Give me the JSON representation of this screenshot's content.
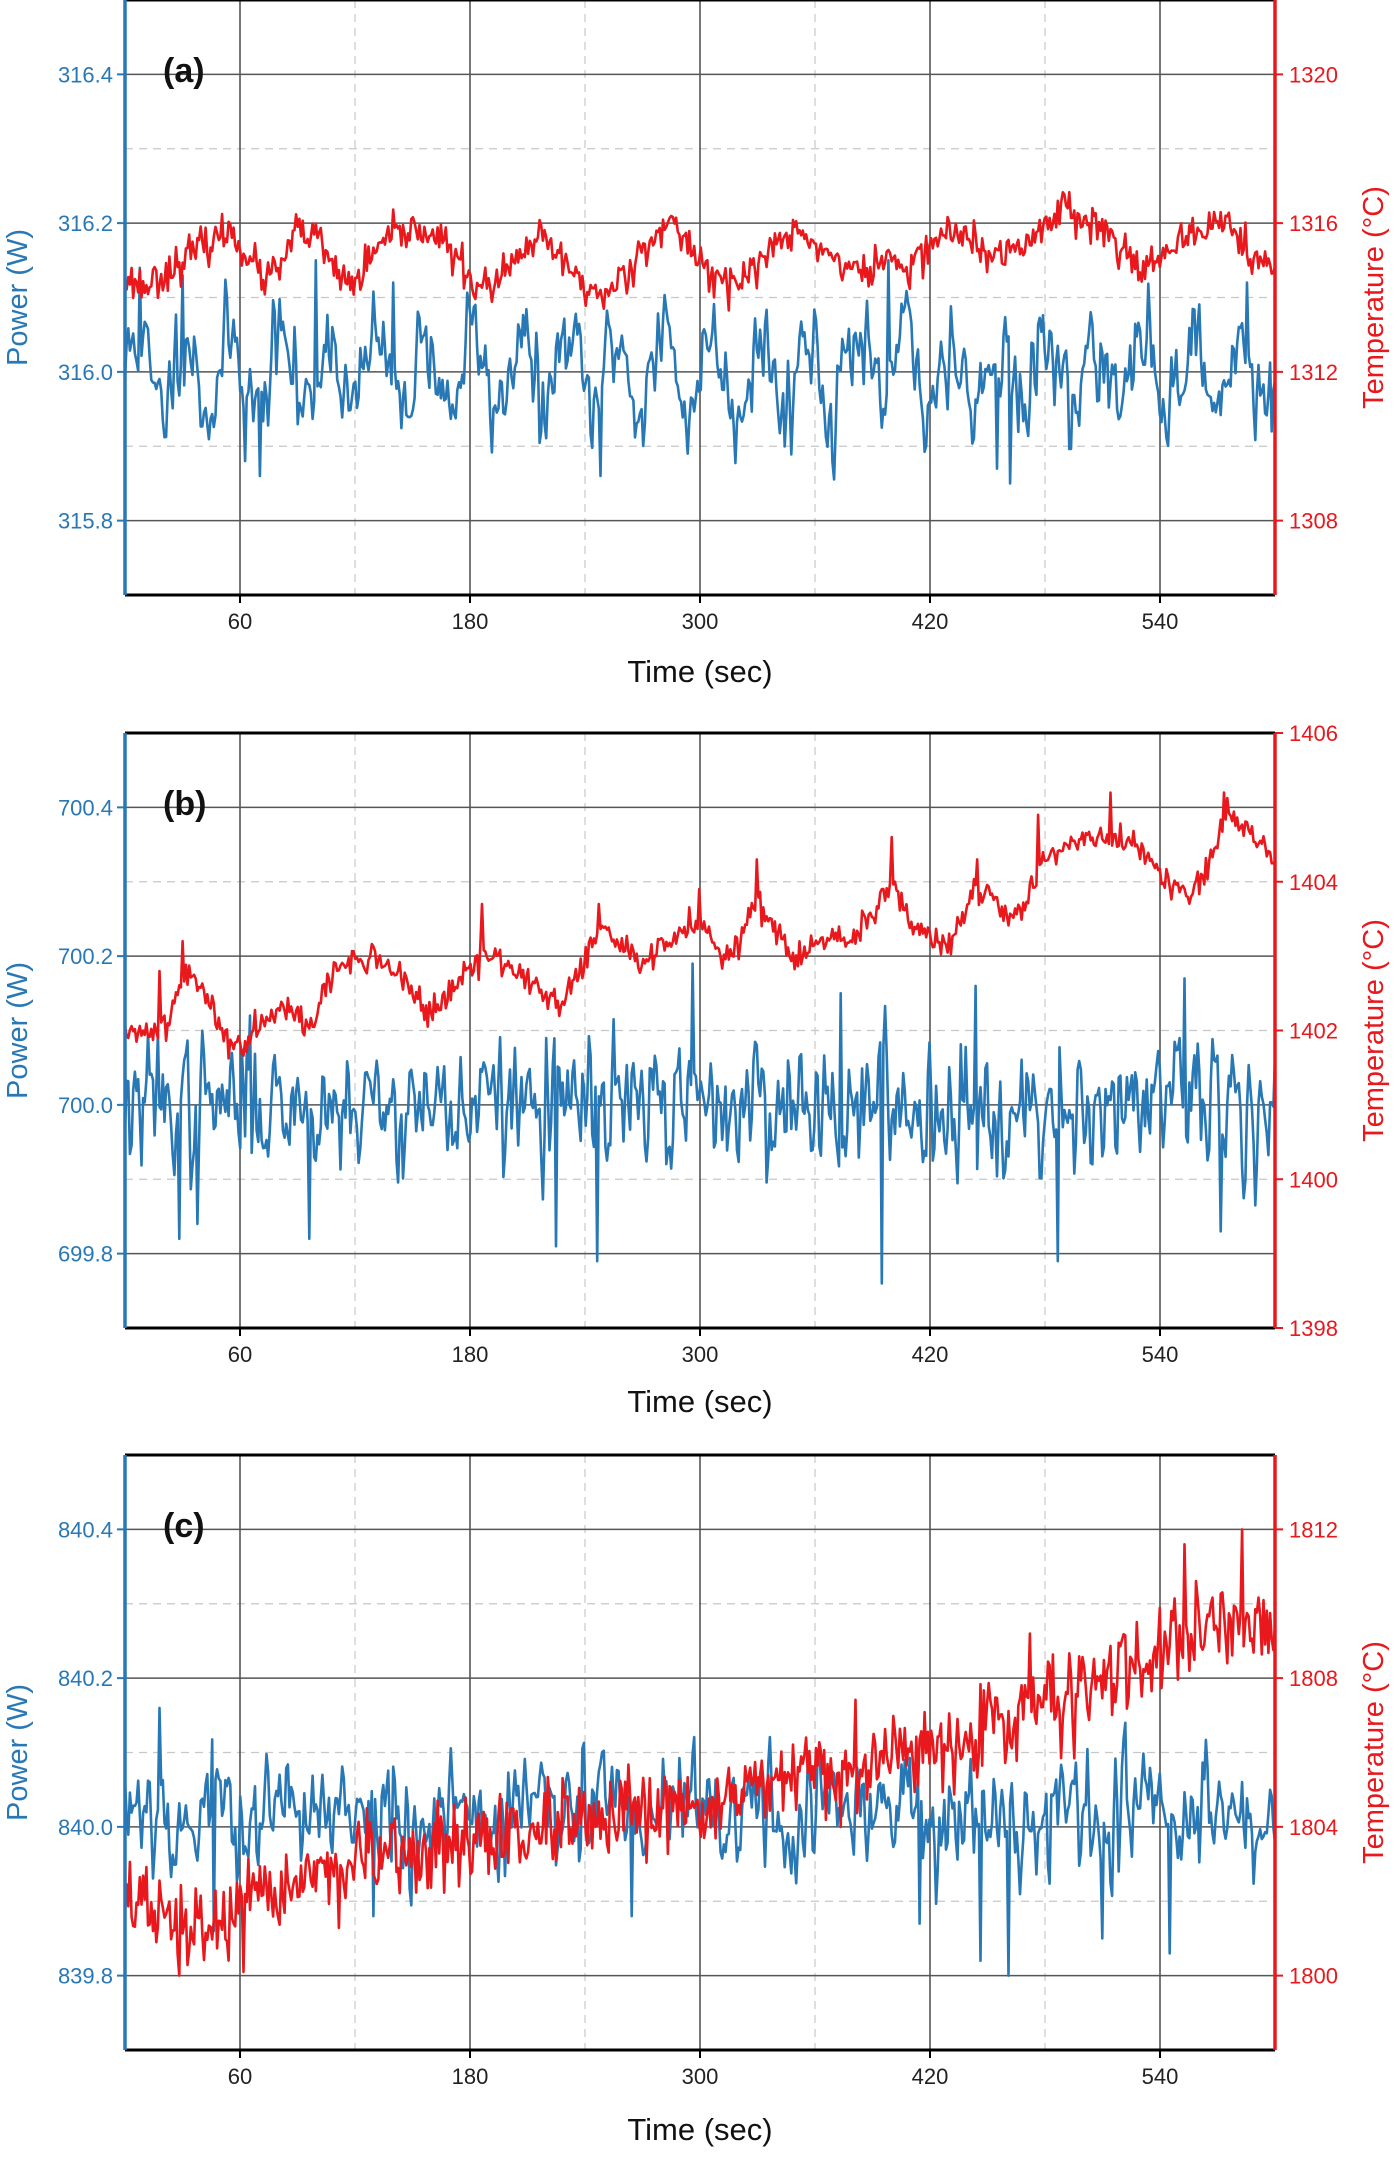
{
  "figure": {
    "colors": {
      "power": "#2878b5",
      "temperature": "#e8181c",
      "major_grid": "#555555",
      "minor_grid": "#c8c8c8",
      "frame": "#000000"
    }
  },
  "chart_data": [
    {
      "type": "line",
      "panel_label": "(a)",
      "xlabel": "Time (sec)",
      "ylabel_left": "Power (W)",
      "ylabel_right": "Temperature (°C)",
      "x_ticks": [
        60,
        180,
        300,
        420,
        540
      ],
      "xlim": [
        0,
        600
      ],
      "left_axis": {
        "ylim": [
          315.7,
          316.5
        ],
        "ticks": [
          "315.8",
          "316.0",
          "316.2",
          "316.4"
        ]
      },
      "right_axis": {
        "ylim": [
          1306,
          1322
        ],
        "ticks": [
          "1308",
          "1312",
          "1316",
          "1320"
        ]
      },
      "grid": true,
      "series": [
        {
          "name": "Power",
          "axis": "left",
          "pattern": "noise",
          "mean": 316.0,
          "amplitude": 0.05,
          "noise_std": 0.045,
          "period": 25,
          "n": 700,
          "seed": 11,
          "spikes": [
            [
              8,
              316.14
            ],
            [
              30,
              316.13
            ],
            [
              63,
              315.88
            ],
            [
              70,
              315.86
            ],
            [
              100,
              316.15
            ],
            [
              140,
              316.12
            ],
            [
              248,
              315.86
            ],
            [
              398,
              316.15
            ],
            [
              455,
              315.87
            ],
            [
              462,
              315.85
            ],
            [
              585,
              316.12
            ],
            [
              598,
              315.92
            ]
          ]
        },
        {
          "name": "Temperature",
          "axis": "right",
          "pattern": "keypoints",
          "noise_std": 0.25,
          "n": 700,
          "seed": 23,
          "keypoints": [
            [
              0,
              1314.5
            ],
            [
              10,
              1314.3
            ],
            [
              25,
              1314.8
            ],
            [
              35,
              1315.2
            ],
            [
              45,
              1315.5
            ],
            [
              55,
              1315.8
            ],
            [
              62,
              1315.3
            ],
            [
              72,
              1314.5
            ],
            [
              80,
              1314.7
            ],
            [
              90,
              1315.8
            ],
            [
              100,
              1315.6
            ],
            [
              112,
              1314.5
            ],
            [
              120,
              1314.4
            ],
            [
              135,
              1315.5
            ],
            [
              150,
              1315.8
            ],
            [
              162,
              1315.7
            ],
            [
              175,
              1314.9
            ],
            [
              185,
              1314.2
            ],
            [
              196,
              1314.5
            ],
            [
              210,
              1315.3
            ],
            [
              218,
              1315.6
            ],
            [
              228,
              1315.0
            ],
            [
              240,
              1314.3
            ],
            [
              250,
              1314.0
            ],
            [
              263,
              1314.8
            ],
            [
              275,
              1315.7
            ],
            [
              285,
              1315.9
            ],
            [
              295,
              1315.4
            ],
            [
              305,
              1314.7
            ],
            [
              318,
              1314.3
            ],
            [
              330,
              1314.9
            ],
            [
              348,
              1315.8
            ],
            [
              358,
              1315.5
            ],
            [
              372,
              1315.0
            ],
            [
              385,
              1314.6
            ],
            [
              398,
              1315.1
            ],
            [
              410,
              1314.7
            ],
            [
              420,
              1315.5
            ],
            [
              432,
              1315.8
            ],
            [
              445,
              1315.4
            ],
            [
              452,
              1315.0
            ],
            [
              465,
              1315.3
            ],
            [
              480,
              1315.9
            ],
            [
              490,
              1316.5
            ],
            [
              500,
              1316.2
            ],
            [
              510,
              1315.8
            ],
            [
              525,
              1315.1
            ],
            [
              535,
              1314.9
            ],
            [
              545,
              1315.1
            ],
            [
              555,
              1315.6
            ],
            [
              565,
              1315.9
            ],
            [
              572,
              1316.2
            ],
            [
              580,
              1315.6
            ],
            [
              590,
              1315.0
            ],
            [
              600,
              1314.7
            ]
          ],
          "spikes": [
            [
              152,
              1315.8
            ],
            [
              156,
              1315.9
            ],
            [
              487,
              1316.6
            ],
            [
              568,
              1316.3
            ],
            [
              574,
              1316.2
            ]
          ]
        }
      ]
    },
    {
      "type": "line",
      "panel_label": "(b)",
      "xlabel": "Time (sec)",
      "ylabel_left": "Power (W)",
      "ylabel_right": "Temperature (°C)",
      "x_ticks": [
        60,
        180,
        300,
        420,
        540
      ],
      "xlim": [
        0,
        600
      ],
      "left_axis": {
        "ylim": [
          699.7,
          700.5
        ],
        "ticks": [
          "699.8",
          "700.0",
          "700.2",
          "700.4"
        ]
      },
      "right_axis": {
        "ylim": [
          1398,
          1406
        ],
        "ticks": [
          "1398",
          "1400",
          "1402",
          "1404",
          "1406"
        ]
      },
      "grid": true,
      "series": [
        {
          "name": "Power",
          "axis": "left",
          "pattern": "noise",
          "mean": 700.0,
          "amplitude": 0.0,
          "noise_std": 0.06,
          "period": 30,
          "n": 700,
          "seed": 37,
          "spikes": [
            [
              28,
              699.82
            ],
            [
              38,
              699.84
            ],
            [
              65,
              700.12
            ],
            [
              96,
              699.82
            ],
            [
              225,
              699.81
            ],
            [
              246,
              699.79
            ],
            [
              296,
              700.19
            ],
            [
              373,
              700.15
            ],
            [
              395,
              699.76
            ],
            [
              444,
              700.16
            ],
            [
              487,
              699.79
            ],
            [
              553,
              700.17
            ],
            [
              572,
              699.83
            ]
          ]
        },
        {
          "name": "Temperature",
          "axis": "right",
          "pattern": "keypoints",
          "noise_std": 0.1,
          "n": 700,
          "seed": 41,
          "keypoints": [
            [
              0,
              1401.9
            ],
            [
              12,
              1402.0
            ],
            [
              22,
              1402.1
            ],
            [
              32,
              1402.8
            ],
            [
              42,
              1402.5
            ],
            [
              52,
              1401.9
            ],
            [
              62,
              1401.8
            ],
            [
              72,
              1402.2
            ],
            [
              85,
              1402.4
            ],
            [
              95,
              1402.0
            ],
            [
              105,
              1402.6
            ],
            [
              115,
              1402.9
            ],
            [
              130,
              1403.0
            ],
            [
              145,
              1402.7
            ],
            [
              160,
              1402.2
            ],
            [
              168,
              1402.4
            ],
            [
              178,
              1402.8
            ],
            [
              188,
              1403.0
            ],
            [
              200,
              1402.9
            ],
            [
              215,
              1402.6
            ],
            [
              225,
              1402.3
            ],
            [
              238,
              1402.8
            ],
            [
              248,
              1403.4
            ],
            [
              260,
              1403.1
            ],
            [
              272,
              1402.9
            ],
            [
              285,
              1403.2
            ],
            [
              300,
              1403.5
            ],
            [
              312,
              1403.0
            ],
            [
              322,
              1403.3
            ],
            [
              330,
              1403.7
            ],
            [
              340,
              1403.4
            ],
            [
              350,
              1402.9
            ],
            [
              362,
              1403.2
            ],
            [
              378,
              1403.2
            ],
            [
              388,
              1403.5
            ],
            [
              400,
              1403.9
            ],
            [
              410,
              1403.5
            ],
            [
              420,
              1403.3
            ],
            [
              432,
              1403.2
            ],
            [
              442,
              1403.9
            ],
            [
              452,
              1403.8
            ],
            [
              460,
              1403.5
            ],
            [
              468,
              1403.6
            ],
            [
              478,
              1404.3
            ],
            [
              495,
              1404.5
            ],
            [
              510,
              1404.6
            ],
            [
              525,
              1404.5
            ],
            [
              535,
              1404.3
            ],
            [
              545,
              1403.9
            ],
            [
              555,
              1403.8
            ],
            [
              565,
              1404.2
            ],
            [
              575,
              1404.9
            ],
            [
              585,
              1404.8
            ],
            [
              592,
              1404.5
            ],
            [
              600,
              1404.3
            ]
          ],
          "spikes": [
            [
              18,
              1402.8
            ],
            [
              30,
              1403.2
            ],
            [
              186,
              1403.7
            ],
            [
              247,
              1403.7
            ],
            [
              300,
              1403.9
            ],
            [
              330,
              1404.3
            ],
            [
              400,
              1404.6
            ],
            [
              445,
              1404.3
            ],
            [
              476,
              1404.9
            ],
            [
              514,
              1405.2
            ],
            [
              573,
              1405.2
            ]
          ]
        }
      ]
    },
    {
      "type": "line",
      "panel_label": "(c)",
      "xlabel": "Time (sec)",
      "ylabel_left": "Power (W)",
      "ylabel_right": "Temperature (°C)",
      "x_ticks": [
        60,
        180,
        300,
        420,
        540
      ],
      "xlim": [
        0,
        600
      ],
      "left_axis": {
        "ylim": [
          839.7,
          840.5
        ],
        "ticks": [
          "839.8",
          "840.0",
          "840.2",
          "840.4"
        ]
      },
      "right_axis": {
        "ylim": [
          1798,
          1814
        ],
        "ticks": [
          "1800",
          "1804",
          "1808",
          "1812"
        ]
      },
      "grid": true,
      "series": [
        {
          "name": "Power",
          "axis": "left",
          "pattern": "noise",
          "mean": 840.02,
          "amplitude": 0.02,
          "noise_std": 0.055,
          "period": 40,
          "n": 700,
          "seed": 53,
          "spikes": [
            [
              18,
              840.16
            ],
            [
              46,
              839.86
            ],
            [
              130,
              839.88
            ],
            [
              264,
              839.88
            ],
            [
              415,
              839.87
            ],
            [
              446,
              839.82
            ],
            [
              461,
              839.8
            ],
            [
              510,
              839.85
            ],
            [
              522,
              840.14
            ],
            [
              545,
              839.83
            ]
          ]
        },
        {
          "name": "Temperature",
          "axis": "right",
          "pattern": "keypoints",
          "noise_std": 0.55,
          "n": 700,
          "seed": 67,
          "keypoints": [
            [
              0,
              1802.2
            ],
            [
              30,
              1801.2
            ],
            [
              60,
              1801.6
            ],
            [
              90,
              1802.6
            ],
            [
              120,
              1803.0
            ],
            [
              150,
              1803.2
            ],
            [
              180,
              1803.6
            ],
            [
              210,
              1803.8
            ],
            [
              240,
              1804.0
            ],
            [
              270,
              1804.2
            ],
            [
              300,
              1804.6
            ],
            [
              330,
              1805.0
            ],
            [
              360,
              1805.4
            ],
            [
              390,
              1805.6
            ],
            [
              420,
              1806.2
            ],
            [
              450,
              1806.6
            ],
            [
              480,
              1807.4
            ],
            [
              510,
              1808.0
            ],
            [
              540,
              1808.4
            ],
            [
              570,
              1809.6
            ],
            [
              600,
              1809.4
            ]
          ],
          "spikes": [
            [
              28,
              1800.0
            ],
            [
              62,
              1800.1
            ],
            [
              472,
              1809.2
            ],
            [
              553,
              1811.6
            ],
            [
              583,
              1812.0
            ]
          ]
        }
      ]
    }
  ]
}
